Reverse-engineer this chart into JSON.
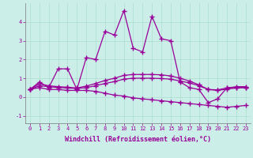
{
  "xlabel": "Windchill (Refroidissement éolien,°C)",
  "background_color": "#cceee8",
  "grid_color": "#aaddcc",
  "line_color": "#990099",
  "xlim": [
    -0.5,
    23.5
  ],
  "ylim": [
    -1.4,
    5.0
  ],
  "xticks": [
    0,
    1,
    2,
    3,
    4,
    5,
    6,
    7,
    8,
    9,
    10,
    11,
    12,
    13,
    14,
    15,
    16,
    17,
    18,
    19,
    20,
    21,
    22,
    23
  ],
  "yticks": [
    -1,
    0,
    1,
    2,
    3,
    4
  ],
  "series": [
    [
      0.4,
      0.8,
      0.5,
      1.5,
      1.5,
      0.4,
      2.1,
      2.0,
      3.5,
      3.3,
      4.6,
      2.6,
      2.4,
      4.3,
      3.1,
      3.0,
      0.8,
      0.5,
      0.4,
      -0.3,
      -0.1,
      0.5,
      0.5,
      0.5
    ],
    [
      0.4,
      0.5,
      0.4,
      0.4,
      0.35,
      0.35,
      0.35,
      0.3,
      0.2,
      0.1,
      0.05,
      -0.05,
      -0.1,
      -0.15,
      -0.2,
      -0.25,
      -0.3,
      -0.35,
      -0.4,
      -0.45,
      -0.5,
      -0.55,
      -0.5,
      -0.45
    ],
    [
      0.4,
      0.6,
      0.55,
      0.5,
      0.48,
      0.45,
      0.5,
      0.6,
      0.72,
      0.82,
      0.95,
      1.0,
      1.0,
      1.0,
      0.98,
      0.95,
      0.85,
      0.75,
      0.6,
      0.4,
      0.35,
      0.42,
      0.48,
      0.5
    ],
    [
      0.4,
      0.7,
      0.6,
      0.55,
      0.52,
      0.48,
      0.58,
      0.72,
      0.88,
      1.0,
      1.15,
      1.2,
      1.2,
      1.2,
      1.18,
      1.12,
      1.0,
      0.85,
      0.65,
      0.4,
      0.38,
      0.48,
      0.55,
      0.55
    ]
  ],
  "marker": "+",
  "markersize": 4,
  "markeredgewidth": 1.0,
  "linewidth": 0.9,
  "tick_fontsize": 5.0,
  "xlabel_fontsize": 6.0,
  "xlabel_fontweight": "bold"
}
